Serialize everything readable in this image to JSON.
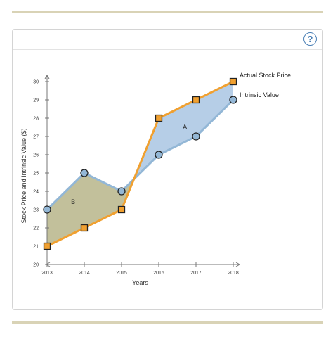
{
  "header": {
    "help_label": "?",
    "help_icon": "help-icon"
  },
  "chart_data": {
    "type": "line",
    "x": [
      2013,
      2014,
      2015,
      2016,
      2017,
      2018
    ],
    "x_tick_labels": [
      "2013",
      "2014",
      "2015",
      "2016",
      "2017",
      "2018"
    ],
    "y_tick_labels": [
      "20",
      "21",
      "22",
      "23",
      "24",
      "25",
      "26",
      "27",
      "28",
      "29",
      "30"
    ],
    "xlabel": "Years",
    "ylabel": "Stock Price and Intrinsic Value ($)",
    "xlim": [
      2013,
      2018
    ],
    "ylim": [
      20,
      30
    ],
    "grid": false,
    "series": [
      {
        "name": "Actual Stock Price",
        "values": [
          21,
          22,
          23,
          28,
          29,
          30
        ],
        "color": "#f0a030",
        "marker": "square"
      },
      {
        "name": "Intrinsic Value",
        "values": [
          23,
          25,
          24,
          26,
          27,
          29
        ],
        "color": "#93b7d6",
        "marker": "circle"
      }
    ],
    "regions": [
      {
        "label": "B",
        "x": 2013.7,
        "y": 23.3,
        "color": "#b7b589"
      },
      {
        "label": "A",
        "x": 2016.7,
        "y": 27.4,
        "color": "#a9c5e3"
      }
    ]
  }
}
